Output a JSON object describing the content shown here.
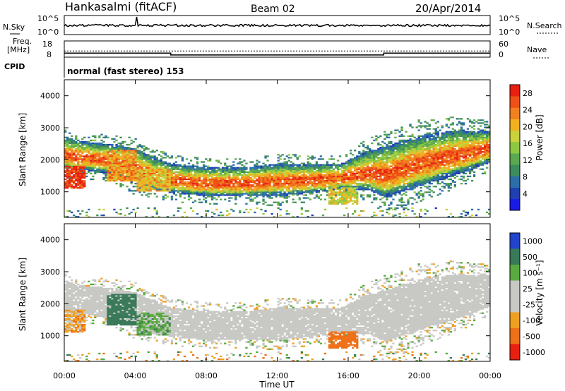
{
  "header": {
    "station": "Hankasalmi (fitACF)",
    "beam": "Beam 02",
    "date": "20/Apr/2014"
  },
  "noise_panel": {
    "left_label": "N.Sky",
    "right_label": "N.Search",
    "y_ticks_left": [
      "10^5",
      "10^0"
    ],
    "y_ticks_right": [
      "10^5",
      "10^0"
    ]
  },
  "freq_panel": {
    "left_label_line1": "Freq.",
    "left_label_line2": "[MHz]",
    "left_ticks": [
      "18",
      "8"
    ],
    "right_label": "Nave",
    "right_ticks": [
      "60",
      "0"
    ],
    "cpid_label": "CPID",
    "cpid_text": "normal (fast stereo) 153"
  },
  "power_panel": {
    "ylabel": "Slant Range [km]",
    "cbar_label": "Power [dB]",
    "y_ticks": [
      "4000",
      "3000",
      "2000",
      "1000"
    ],
    "cbar_ticks": [
      "28",
      "24",
      "20",
      "16",
      "12",
      "8",
      "4"
    ]
  },
  "velocity_panel": {
    "ylabel": "Slant Range [km]",
    "cbar_label": "Velocity [m s⁻¹]",
    "y_ticks": [
      "4000",
      "3000",
      "2000",
      "1000"
    ],
    "cbar_ticks": [
      "1000",
      "500",
      "100",
      "25",
      "-25",
      "-100",
      "-500",
      "-1000"
    ]
  },
  "x_axis": {
    "label": "Time UT",
    "ticks": [
      "00:00",
      "04:00",
      "08:00",
      "12:00",
      "16:00",
      "20:00",
      "00:00"
    ]
  },
  "chart_data": {
    "type": "heatmap",
    "x_unit": "hours UT",
    "xlim": [
      0,
      24
    ],
    "ylim_km": [
      200,
      4500
    ],
    "power_scale_db": [
      0,
      30
    ],
    "velocity_scale": [
      -1000,
      1000
    ],
    "power_colors": [
      "#1a1ae6",
      "#2040b0",
      "#2c6fa8",
      "#3d8c5c",
      "#5aa850",
      "#8dc843",
      "#c9d23a",
      "#f0b020",
      "#f08020",
      "#ee5018",
      "#e82010"
    ],
    "velocity_colors": [
      "#2244cc",
      "#3a7a5a",
      "#5aaa40",
      "#c8c8c4",
      "#f0a020",
      "#ee7018",
      "#e82010"
    ],
    "echo_band_center_km": [
      {
        "t": 0.0,
        "center": 2200,
        "width": 500
      },
      {
        "t": 1.0,
        "center": 2100,
        "width": 450
      },
      {
        "t": 2.0,
        "center": 2050,
        "width": 450
      },
      {
        "t": 3.0,
        "center": 1950,
        "width": 500
      },
      {
        "t": 4.0,
        "center": 1750,
        "width": 550
      },
      {
        "t": 5.0,
        "center": 1550,
        "width": 500
      },
      {
        "t": 6.0,
        "center": 1400,
        "width": 450
      },
      {
        "t": 8.0,
        "center": 1300,
        "width": 450
      },
      {
        "t": 10.0,
        "center": 1300,
        "width": 450
      },
      {
        "t": 12.0,
        "center": 1350,
        "width": 500
      },
      {
        "t": 14.0,
        "center": 1400,
        "width": 450
      },
      {
        "t": 15.5,
        "center": 1450,
        "width": 400
      },
      {
        "t": 17.0,
        "center": 1650,
        "width": 600
      },
      {
        "t": 18.0,
        "center": 1600,
        "width": 800
      },
      {
        "t": 20.0,
        "center": 1950,
        "width": 800
      },
      {
        "t": 22.0,
        "center": 2200,
        "width": 700
      },
      {
        "t": 24.0,
        "center": 2400,
        "width": 500
      }
    ],
    "near_range_patches": [
      {
        "t0": 0.0,
        "t1": 1.2,
        "r0": 1100,
        "r1": 1800,
        "power": 28,
        "velocity": -60
      },
      {
        "t0": 2.4,
        "t1": 4.0,
        "r0": 1300,
        "r1": 2300,
        "power": 22,
        "velocity": 200
      },
      {
        "t0": 4.0,
        "t1": 6.0,
        "r0": 1000,
        "r1": 1700,
        "power": 20,
        "velocity": 50
      },
      {
        "t0": 14.8,
        "t1": 16.5,
        "r0": 600,
        "r1": 1100,
        "power": 18,
        "velocity": -400
      }
    ],
    "frequency_mhz": 11.8,
    "nave_steps": [
      {
        "t0": 0.0,
        "t1": 6.0,
        "value": 15
      },
      {
        "t0": 6.0,
        "t1": 18.0,
        "value": 8
      },
      {
        "t0": 18.0,
        "t1": 24.0,
        "value": 15
      }
    ]
  }
}
